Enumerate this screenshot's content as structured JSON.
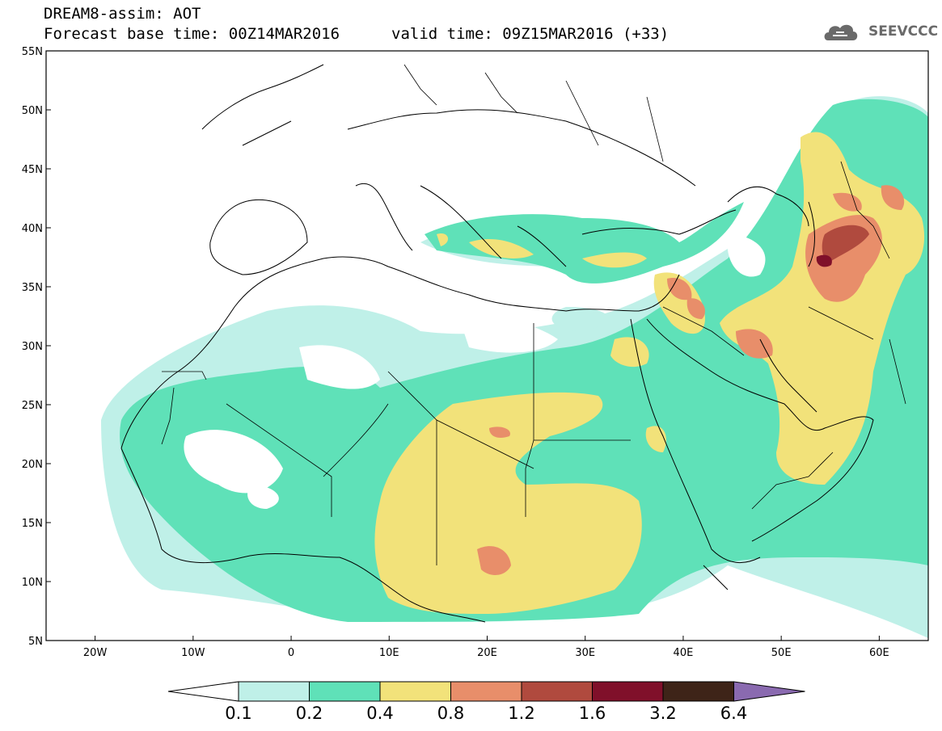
{
  "header": {
    "title": "DREAM8-assim: AOT",
    "base_time": "Forecast base time: 00Z14MAR2016",
    "valid_time": "valid time: 09Z15MAR2016 (+33)"
  },
  "logo": {
    "text": "SEEVCCC",
    "icon": "cloud-icon"
  },
  "map": {
    "projection": "lat-lon",
    "lon_range": [
      -25,
      65
    ],
    "lat_range": [
      5,
      55
    ],
    "lat_ticks": [
      {
        "value": 55,
        "label": "55N"
      },
      {
        "value": 50,
        "label": "50N"
      },
      {
        "value": 45,
        "label": "45N"
      },
      {
        "value": 40,
        "label": "40N"
      },
      {
        "value": 35,
        "label": "35N"
      },
      {
        "value": 30,
        "label": "30N"
      },
      {
        "value": 25,
        "label": "25N"
      },
      {
        "value": 20,
        "label": "20N"
      },
      {
        "value": 15,
        "label": "15N"
      },
      {
        "value": 10,
        "label": "10N"
      },
      {
        "value": 5,
        "label": "5N"
      }
    ],
    "lon_ticks": [
      {
        "value": -20,
        "label": "20W"
      },
      {
        "value": -10,
        "label": "10W"
      },
      {
        "value": 0,
        "label": "0"
      },
      {
        "value": 10,
        "label": "10E"
      },
      {
        "value": 20,
        "label": "20E"
      },
      {
        "value": 30,
        "label": "30E"
      },
      {
        "value": 40,
        "label": "40E"
      },
      {
        "value": 50,
        "label": "50E"
      },
      {
        "value": 60,
        "label": "60E"
      }
    ]
  },
  "colorbar": {
    "labels": [
      "0.1",
      "0.2",
      "0.4",
      "0.8",
      "1.2",
      "1.6",
      "3.2",
      "6.4"
    ],
    "colors": [
      "#bff0e8",
      "#5fe1b8",
      "#f2e27a",
      "#e88e6a",
      "#b04a3e",
      "#80102a",
      "#3e2418",
      "#8a6ab0"
    ]
  }
}
